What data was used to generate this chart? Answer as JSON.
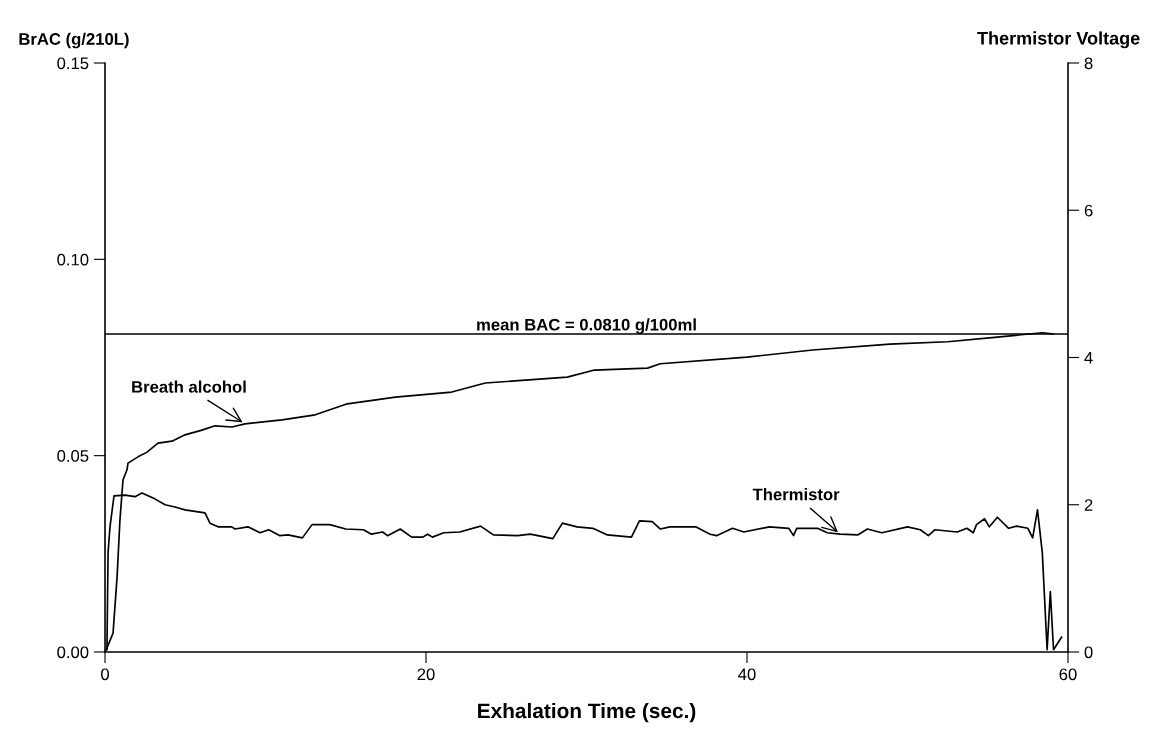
{
  "chart_data": {
    "type": "line",
    "xlabel": "Exhalation Time (sec.)",
    "ylabel": "BrAC (g/210L)",
    "y2label": "Thermistor Voltage",
    "xlim": [
      0,
      60
    ],
    "xticks": [
      0,
      20,
      40,
      60
    ],
    "ylim": [
      0,
      0.15
    ],
    "yticks": [
      {
        "value": 0,
        "label": "0.00"
      },
      {
        "value": 0.05,
        "label": "0.05"
      },
      {
        "value": 0.1,
        "label": "0.10"
      },
      {
        "value": 0.15,
        "label": "0.15"
      }
    ],
    "y2lim": [
      0,
      8
    ],
    "y2ticks": [
      0,
      2,
      4,
      6,
      8
    ],
    "grid": false,
    "legend": false,
    "ref_lines": [
      {
        "axis": "y",
        "value": 0.081,
        "label": "mean BAC = 0.0810 g/100ml",
        "color": "#000000"
      }
    ],
    "series": [
      {
        "name": "Breath alcohol",
        "color": "#000000",
        "x": [
          0,
          0.12,
          0.5,
          0.75,
          0.93,
          1.12,
          1.37,
          1.43,
          2.06,
          2.62,
          3.3,
          4.17,
          4.98,
          6.04,
          6.85,
          7.91,
          8.72,
          11.03,
          13.1,
          15.1,
          18.1,
          21.6,
          23.7,
          28.8,
          30.5,
          33.8,
          34.6,
          40.0,
          44.1,
          48.9,
          52.5,
          55.6,
          58.4,
          59.1
        ],
        "values": [
          0,
          0.001,
          0.0048,
          0.019,
          0.0336,
          0.0438,
          0.0464,
          0.0481,
          0.0497,
          0.0509,
          0.0532,
          0.0537,
          0.0553,
          0.0565,
          0.0576,
          0.0573,
          0.0581,
          0.0591,
          0.0604,
          0.0632,
          0.0649,
          0.0662,
          0.0685,
          0.07,
          0.0718,
          0.0723,
          0.0734,
          0.0751,
          0.0769,
          0.0784,
          0.079,
          0.0802,
          0.0813,
          0.081
        ]
      },
      {
        "name": "Thermistor",
        "color": "#000000",
        "axis": "y2",
        "x": [
          0.12,
          0.19,
          0.31,
          0.56,
          1.25,
          1.87,
          2.3,
          3.1,
          3.74,
          4.36,
          4.98,
          6.23,
          6.54,
          7.04,
          7.9,
          8.1,
          8.9,
          9.66,
          10.2,
          10.9,
          11.4,
          12.3,
          12.9,
          14.0,
          15.0,
          16.1,
          16.6,
          17.3,
          17.6,
          18.4,
          19.1,
          19.8,
          20.1,
          20.4,
          21.1,
          22.1,
          23.4,
          24.2,
          25.7,
          26.5,
          27.9,
          28.5,
          29.4,
          30.4,
          31.3,
          32.8,
          33.3,
          34.1,
          34.6,
          35.2,
          36.8,
          37.7,
          38.1,
          39.1,
          39.8,
          41.4,
          42.6,
          42.9,
          43.1,
          44.4,
          45.0,
          45.8,
          46.9,
          47.5,
          48.4,
          50.0,
          50.8,
          51.3,
          51.7,
          53.1,
          53.7,
          54.1,
          54.3,
          54.8,
          55.1,
          55.6,
          56.3,
          56.8,
          57.5,
          57.8,
          58.1,
          58.4,
          58.7,
          58.9,
          59.1,
          59.6
        ],
        "values": [
          0.03,
          1.35,
          1.7,
          2.12,
          2.13,
          2.11,
          2.16,
          2.08,
          2.0,
          1.97,
          1.93,
          1.89,
          1.75,
          1.7,
          1.7,
          1.67,
          1.7,
          1.62,
          1.66,
          1.58,
          1.59,
          1.55,
          1.73,
          1.73,
          1.67,
          1.66,
          1.6,
          1.63,
          1.58,
          1.67,
          1.56,
          1.56,
          1.6,
          1.56,
          1.62,
          1.63,
          1.71,
          1.59,
          1.58,
          1.6,
          1.54,
          1.75,
          1.7,
          1.68,
          1.59,
          1.56,
          1.78,
          1.77,
          1.67,
          1.7,
          1.7,
          1.6,
          1.58,
          1.68,
          1.63,
          1.7,
          1.68,
          1.58,
          1.68,
          1.68,
          1.62,
          1.6,
          1.59,
          1.67,
          1.62,
          1.7,
          1.66,
          1.58,
          1.66,
          1.63,
          1.68,
          1.62,
          1.73,
          1.81,
          1.7,
          1.83,
          1.68,
          1.71,
          1.68,
          1.55,
          1.93,
          1.35,
          0.03,
          0.82,
          0.03,
          0.2
        ]
      }
    ]
  }
}
